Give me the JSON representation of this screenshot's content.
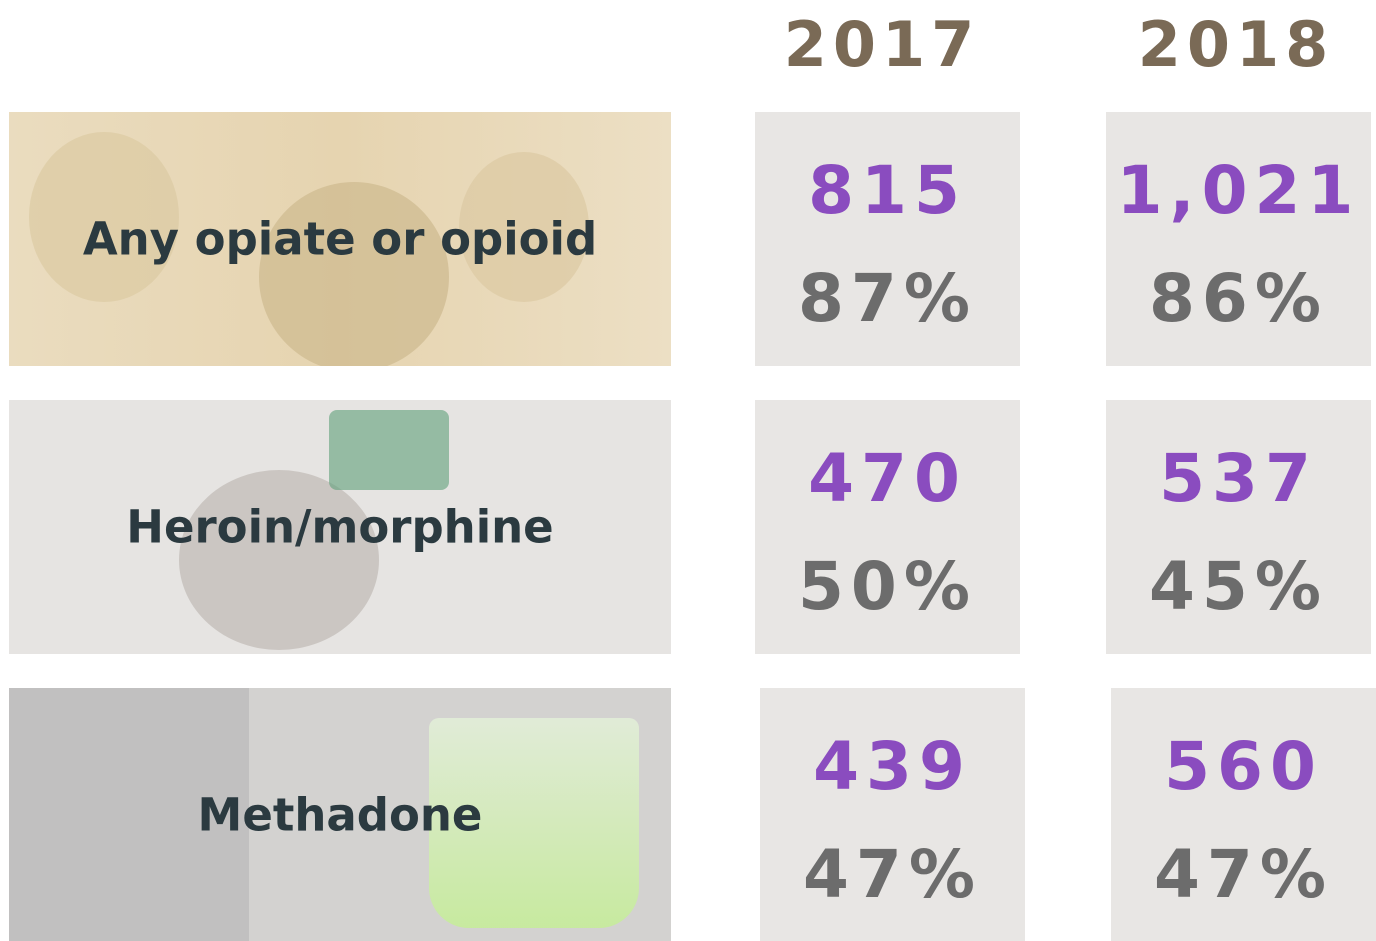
{
  "years": [
    "2017",
    "2018"
  ],
  "rows": [
    {
      "label": "Any opiate or opioid",
      "values": [
        {
          "count": "815",
          "percent": "87%"
        },
        {
          "count": "1,021",
          "percent": "86%"
        }
      ]
    },
    {
      "label": "Heroin/morphine",
      "values": [
        {
          "count": "470",
          "percent": "50%"
        },
        {
          "count": "537",
          "percent": "45%"
        }
      ]
    },
    {
      "label": "Methadone",
      "values": [
        {
          "count": "439",
          "percent": "47%"
        },
        {
          "count": "560",
          "percent": "47%"
        }
      ]
    }
  ]
}
